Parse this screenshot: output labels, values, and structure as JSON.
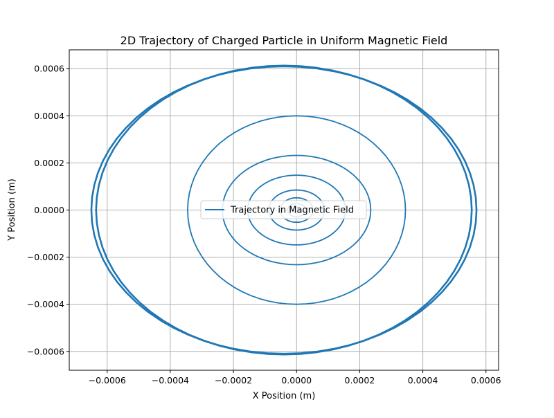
{
  "chart_data": {
    "type": "line",
    "title": "2D Trajectory of Charged Particle in Uniform Magnetic Field",
    "xlabel": "X Position (m)",
    "ylabel": "Y Position (m)",
    "xlim": [
      -0.00072,
      0.00064
    ],
    "ylim": [
      -0.00068,
      0.00068
    ],
    "xticks": [
      -0.0006,
      -0.0004,
      -0.0002,
      0.0,
      0.0002,
      0.0004,
      0.0006
    ],
    "yticks": [
      -0.0006,
      -0.0004,
      -0.0002,
      0.0,
      0.0002,
      0.0004,
      0.0006
    ],
    "xtick_labels": [
      "−0.0006",
      "−0.0004",
      "−0.0002",
      "0.0000",
      "0.0002",
      "0.0004",
      "0.0006"
    ],
    "ytick_labels": [
      "−0.0006",
      "−0.0004",
      "−0.0002",
      "0.0000",
      "0.0002",
      "0.0004",
      "0.0006"
    ],
    "grid": true,
    "legend_position": "center",
    "series": [
      {
        "name": "Trajectory in Magnetic Field",
        "color": "#1f77b4",
        "loops": [
          {
            "cx": 0.0,
            "cy": 0.0,
            "rx": 1.2e-05,
            "ry": 1.2e-05
          },
          {
            "cx": 0.0,
            "cy": 0.0,
            "rx": 2.8e-05,
            "ry": 2.8e-05
          },
          {
            "cx": 0.0,
            "cy": 0.0,
            "rx": 5.2e-05,
            "ry": 5.2e-05
          },
          {
            "cx": 0.0,
            "cy": 0.0,
            "rx": 8.8e-05,
            "ry": 8.5e-05
          },
          {
            "cx": 0.0,
            "cy": 0.0,
            "rx": 0.000155,
            "ry": 0.000148
          },
          {
            "cx": 0.0,
            "cy": 0.0,
            "rx": 0.000235,
            "ry": 0.000232
          },
          {
            "cx": 0.0,
            "cy": 0.0,
            "rx": 0.000345,
            "ry": 0.0004
          },
          {
            "cx": -4e-05,
            "cy": 0.0,
            "rx": 0.000595,
            "ry": 0.000613
          },
          {
            "cx": -4e-05,
            "cy": 0.0,
            "rx": 0.00061,
            "ry": 0.00061
          }
        ]
      }
    ]
  }
}
